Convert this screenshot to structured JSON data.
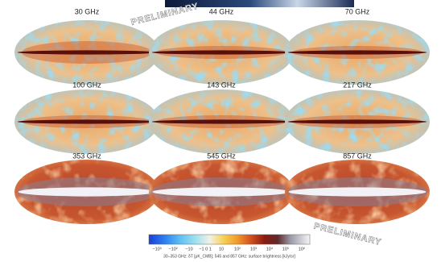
{
  "panels": [
    {
      "label": "30 GHz"
    },
    {
      "label": "44 GHz"
    },
    {
      "label": "70 GHz"
    },
    {
      "label": "100 GHz"
    },
    {
      "label": "143 GHz"
    },
    {
      "label": "217 GHz"
    },
    {
      "label": "353 GHz"
    },
    {
      "label": "545 GHz"
    },
    {
      "label": "857 GHz"
    }
  ],
  "watermarks": [
    "PRELIMINARY",
    "PRELIMINARY"
  ],
  "colorbar": {
    "ticks": [
      "−10³",
      "−10²",
      "−10",
      "−1 0 1",
      "10",
      "10²",
      "10³",
      "10⁴",
      "10⁵",
      "10⁶"
    ],
    "caption": "30–353 GHz: δT [μK_CMB]; 545 and 857 GHz: surface brightness [kJy/sr]"
  }
}
